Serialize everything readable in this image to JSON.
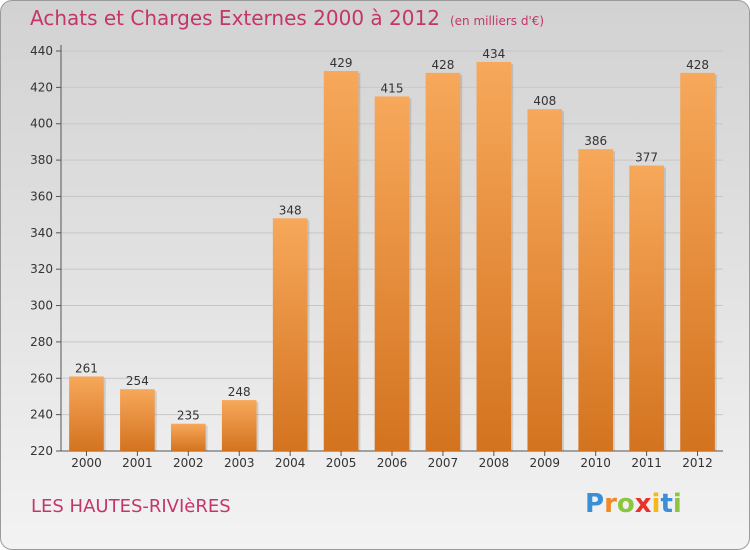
{
  "title": "Achats et Charges Externes 2000 à 2012",
  "subtitle": "(en milliers d'€)",
  "location": "LES HAUTES-RIVIèRES",
  "logo": {
    "text": "Proxiti",
    "letters": [
      {
        "ch": "P",
        "color": "#3a8fd6"
      },
      {
        "ch": "r",
        "color": "#f08a24"
      },
      {
        "ch": "o",
        "color": "#8cc63f"
      },
      {
        "ch": "x",
        "color": "#e8332a"
      },
      {
        "ch": "i",
        "color": "#f5b81b"
      },
      {
        "ch": "t",
        "color": "#3a8fd6"
      },
      {
        "ch": "i",
        "color": "#8cc63f"
      }
    ]
  },
  "colors": {
    "bar_top": "#f7a85a",
    "bar_bottom": "#d3731f",
    "title": "#c4356a",
    "grid": "#c8c8c8"
  },
  "chart_data": {
    "type": "bar",
    "categories": [
      "2000",
      "2001",
      "2002",
      "2003",
      "2004",
      "2005",
      "2006",
      "2007",
      "2008",
      "2009",
      "2010",
      "2011",
      "2012"
    ],
    "values": [
      261,
      254,
      235,
      248,
      348,
      429,
      415,
      428,
      434,
      408,
      386,
      377,
      428
    ],
    "ylim": [
      220,
      440
    ],
    "yticks": [
      220,
      240,
      260,
      280,
      300,
      320,
      340,
      360,
      380,
      400,
      420,
      440
    ],
    "grid": true,
    "data_labels": true
  }
}
